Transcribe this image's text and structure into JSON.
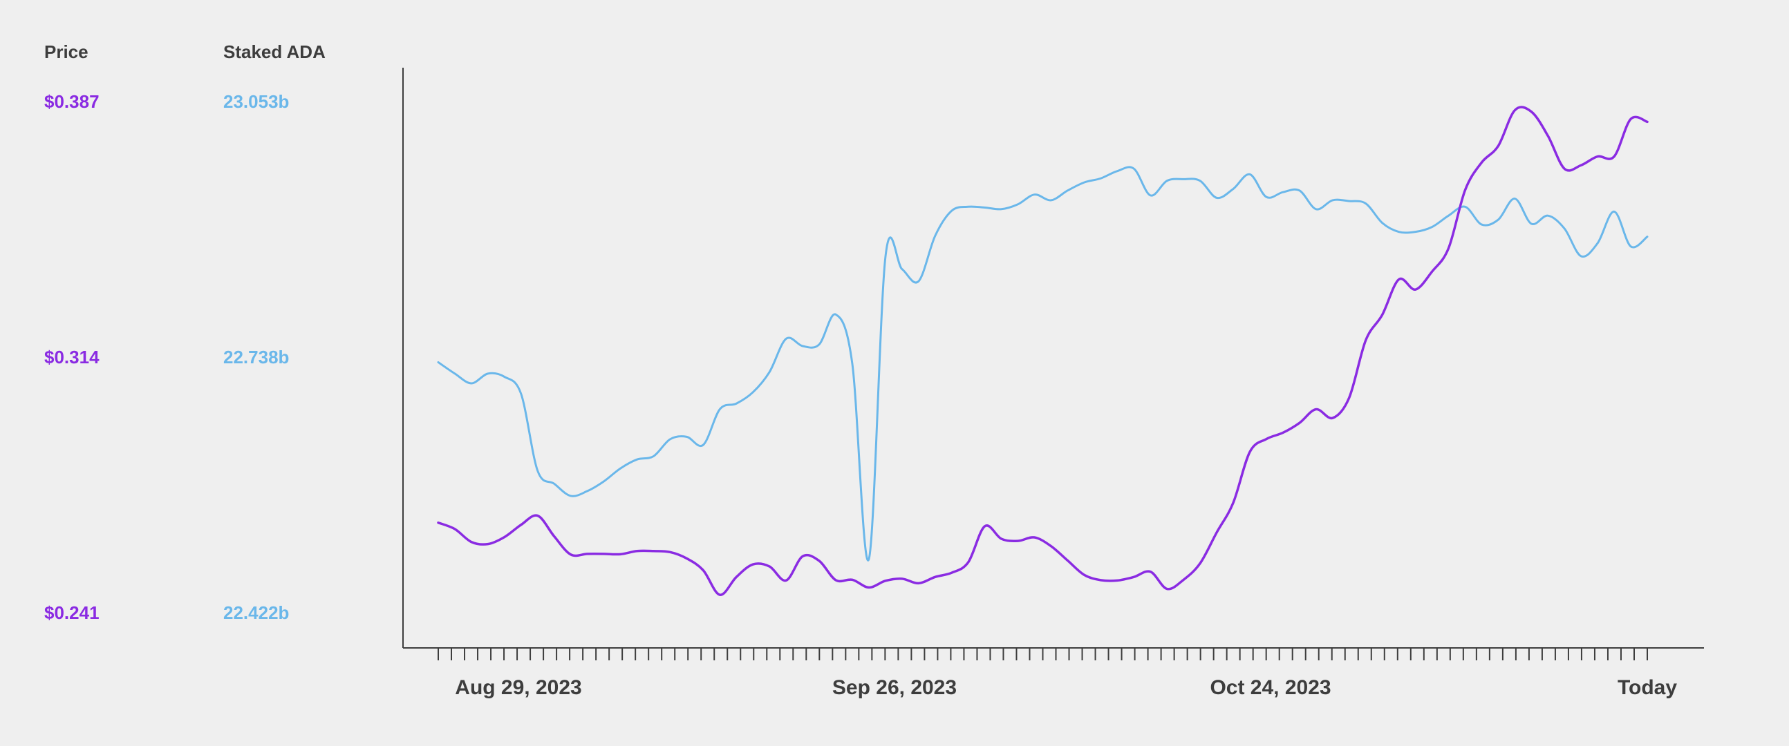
{
  "panel": {
    "price_header": "Price",
    "staked_header": "Staked ADA",
    "price_ticks": [
      "$0.387",
      "$0.314",
      "$0.241"
    ],
    "staked_ticks": [
      "23.053b",
      "22.738b",
      "22.422b"
    ]
  },
  "colors": {
    "price": "#8a2be2",
    "staked": "#6ab7ea",
    "axis": "#3d3d3d",
    "background": "#efefef"
  },
  "chart_data": {
    "type": "line",
    "x_tick_labels": [
      "Aug 29, 2023",
      "Sep 26, 2023",
      "Oct 24, 2023",
      "Today"
    ],
    "n_daily_ticks": 93,
    "series": [
      {
        "name": "Price",
        "axis": "left",
        "ylim": [
          0.241,
          0.387
        ],
        "points": [
          [
            0,
            0.2669
          ],
          [
            1,
            0.2651
          ],
          [
            2,
            0.2614
          ],
          [
            3,
            0.2608
          ],
          [
            4,
            0.2628
          ],
          [
            5,
            0.2663
          ],
          [
            6,
            0.2689
          ],
          [
            7,
            0.263
          ],
          [
            8,
            0.2578
          ],
          [
            9,
            0.258
          ],
          [
            10,
            0.258
          ],
          [
            11,
            0.2579
          ],
          [
            12,
            0.2588
          ],
          [
            13,
            0.2588
          ],
          [
            14,
            0.2585
          ],
          [
            15,
            0.2567
          ],
          [
            16,
            0.2533
          ],
          [
            17,
            0.2463
          ],
          [
            18,
            0.2514
          ],
          [
            19,
            0.255
          ],
          [
            20,
            0.2544
          ],
          [
            21,
            0.2504
          ],
          [
            22,
            0.2573
          ],
          [
            23,
            0.256
          ],
          [
            24,
            0.2505
          ],
          [
            25,
            0.2506
          ],
          [
            26,
            0.2484
          ],
          [
            27,
            0.2503
          ],
          [
            28,
            0.2509
          ],
          [
            29,
            0.2496
          ],
          [
            30,
            0.2514
          ],
          [
            31,
            0.2526
          ],
          [
            32,
            0.2556
          ],
          [
            33,
            0.2659
          ],
          [
            34,
            0.2623
          ],
          [
            35,
            0.2617
          ],
          [
            36,
            0.2627
          ],
          [
            37,
            0.2602
          ],
          [
            38,
            0.2561
          ],
          [
            39,
            0.252
          ],
          [
            40,
            0.2505
          ],
          [
            41,
            0.2504
          ],
          [
            42,
            0.2514
          ],
          [
            43,
            0.2529
          ],
          [
            44,
            0.248
          ],
          [
            45,
            0.2506
          ],
          [
            46,
            0.2553
          ],
          [
            47,
            0.2641
          ],
          [
            48,
            0.2726
          ],
          [
            49,
            0.2871
          ],
          [
            50,
            0.2908
          ],
          [
            51,
            0.2926
          ],
          [
            52,
            0.2954
          ],
          [
            53,
            0.2993
          ],
          [
            54,
            0.2968
          ],
          [
            55,
            0.3026
          ],
          [
            56,
            0.319
          ],
          [
            57,
            0.3263
          ],
          [
            58,
            0.3364
          ],
          [
            59,
            0.3335
          ],
          [
            60,
            0.3386
          ],
          [
            61,
            0.3453
          ],
          [
            62,
            0.3619
          ],
          [
            63,
            0.3698
          ],
          [
            64,
            0.3745
          ],
          [
            65,
            0.3847
          ],
          [
            66,
            0.3843
          ],
          [
            67,
            0.3774
          ],
          [
            68,
            0.368
          ],
          [
            69,
            0.369
          ],
          [
            70,
            0.3715
          ],
          [
            71,
            0.3715
          ],
          [
            72,
            0.3822
          ],
          [
            73,
            0.3814
          ]
        ]
      },
      {
        "name": "Staked ADA",
        "axis": "right",
        "ylim": [
          22.422,
          23.053
        ],
        "points": [
          [
            0,
            22.732
          ],
          [
            1,
            22.718
          ],
          [
            2,
            22.706
          ],
          [
            3,
            22.718
          ],
          [
            4,
            22.714
          ],
          [
            5,
            22.693
          ],
          [
            6,
            22.598
          ],
          [
            7,
            22.582
          ],
          [
            8,
            22.567
          ],
          [
            9,
            22.573
          ],
          [
            10,
            22.585
          ],
          [
            11,
            22.601
          ],
          [
            12,
            22.612
          ],
          [
            13,
            22.616
          ],
          [
            14,
            22.637
          ],
          [
            15,
            22.64
          ],
          [
            16,
            22.63
          ],
          [
            17,
            22.674
          ],
          [
            18,
            22.681
          ],
          [
            19,
            22.695
          ],
          [
            20,
            22.72
          ],
          [
            21,
            22.761
          ],
          [
            22,
            22.752
          ],
          [
            23,
            22.754
          ],
          [
            24,
            22.791
          ],
          [
            25,
            22.73
          ],
          [
            26,
            22.489
          ],
          [
            27,
            22.862
          ],
          [
            28,
            22.847
          ],
          [
            29,
            22.832
          ],
          [
            30,
            22.888
          ],
          [
            31,
            22.919
          ],
          [
            32,
            22.924
          ],
          [
            33,
            22.923
          ],
          [
            34,
            22.921
          ],
          [
            35,
            22.927
          ],
          [
            36,
            22.939
          ],
          [
            37,
            22.932
          ],
          [
            38,
            22.944
          ],
          [
            39,
            22.954
          ],
          [
            40,
            22.959
          ],
          [
            41,
            22.968
          ],
          [
            42,
            22.971
          ],
          [
            43,
            22.938
          ],
          [
            44,
            22.956
          ],
          [
            45,
            22.958
          ],
          [
            46,
            22.956
          ],
          [
            47,
            22.935
          ],
          [
            48,
            22.946
          ],
          [
            49,
            22.964
          ],
          [
            50,
            22.936
          ],
          [
            51,
            22.942
          ],
          [
            52,
            22.944
          ],
          [
            53,
            22.921
          ],
          [
            54,
            22.932
          ],
          [
            55,
            22.931
          ],
          [
            56,
            22.928
          ],
          [
            57,
            22.904
          ],
          [
            58,
            22.893
          ],
          [
            59,
            22.893
          ],
          [
            60,
            22.899
          ],
          [
            61,
            22.913
          ],
          [
            62,
            22.924
          ],
          [
            63,
            22.902
          ],
          [
            64,
            22.908
          ],
          [
            65,
            22.934
          ],
          [
            66,
            22.903
          ],
          [
            67,
            22.913
          ],
          [
            68,
            22.897
          ],
          [
            69,
            22.863
          ],
          [
            70,
            22.879
          ],
          [
            71,
            22.918
          ],
          [
            72,
            22.875
          ],
          [
            73,
            22.887
          ]
        ]
      }
    ]
  }
}
